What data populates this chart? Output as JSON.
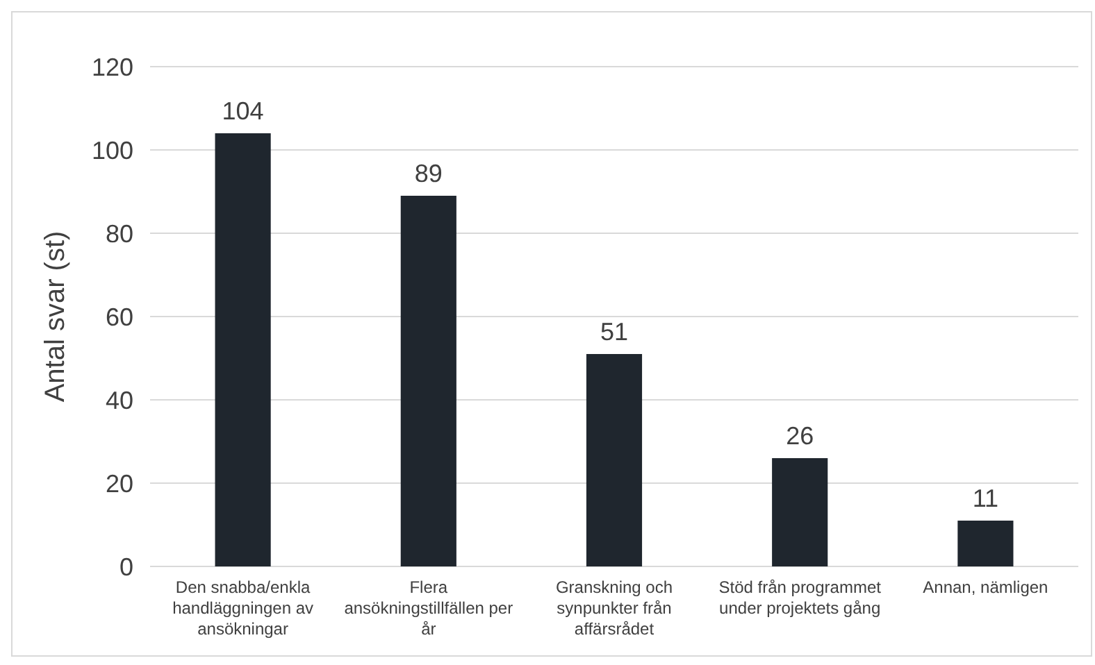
{
  "chart_data": {
    "type": "bar",
    "ylabel": "Antal svar (st)",
    "categories": [
      "Den snabba/enkla handläggningen av ansökningar",
      "Flera ansökningstillfällen per år",
      "Granskning och synpunkter från affärsrådet",
      "Stöd från programmet under projektets gång",
      "Annan, nämligen"
    ],
    "values": [
      104,
      89,
      51,
      26,
      11
    ],
    "color": "#1f262e",
    "ylim": [
      0,
      120
    ],
    "yticks": [
      0,
      20,
      40,
      60,
      80,
      100,
      120
    ],
    "grid": "y",
    "data_labels": true
  }
}
